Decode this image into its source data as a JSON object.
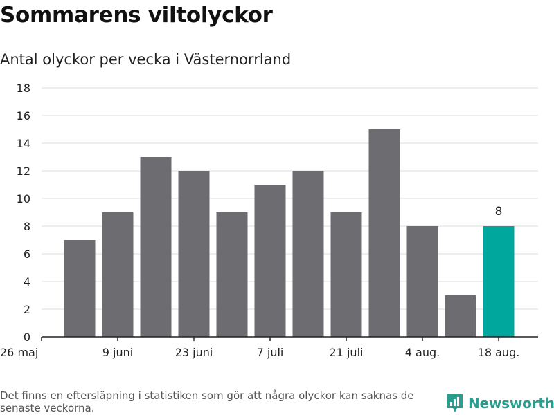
{
  "chart_data": {
    "type": "bar",
    "title": "Sommarens viltolyckor",
    "subtitle": "Antal olyckor per vecka i Västernorrland",
    "x_tick_labels": [
      "26 maj",
      "9 juni",
      "23 juni",
      "7 juli",
      "21 juli",
      "4 aug.",
      "18 aug."
    ],
    "values": [
      7,
      9,
      13,
      12,
      9,
      11,
      12,
      9,
      15,
      8,
      3,
      8
    ],
    "highlight_index": 11,
    "data_labels": [
      {
        "index": 11,
        "text": "8"
      }
    ],
    "y_ticks": [
      0,
      2,
      4,
      6,
      8,
      10,
      12,
      14,
      16,
      18
    ],
    "ylim": [
      0,
      18
    ],
    "grid": true,
    "colors": {
      "bar": "#6d6c71",
      "highlight": "#00a79d",
      "grid": "#dddddd",
      "axis": "#222222"
    }
  },
  "footnote": "Det finns en eftersläpning i statistiken som gör att några olyckor kan saknas de senaste veckorna.",
  "brand": {
    "name": "Newsworthy",
    "icon": "newsworthy-logo-icon",
    "color": "#2a9d8f"
  }
}
